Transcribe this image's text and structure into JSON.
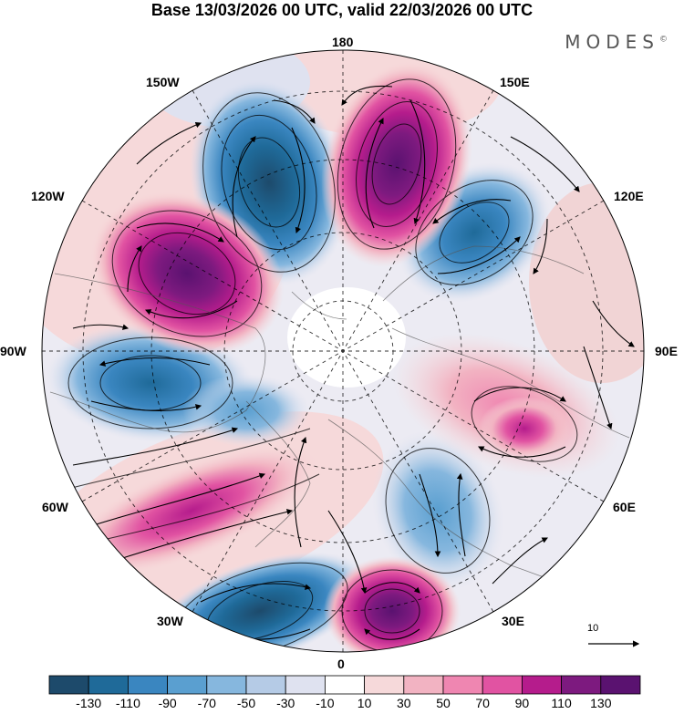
{
  "title": "Base 13/03/2026 00 UTC, valid 22/03/2026 00 UTC",
  "brand": "MODES",
  "brand_mark": "©",
  "longitude_labels": {
    "top": "180",
    "bottom": "0",
    "left": "90W",
    "right": "90E",
    "upper_left": "150W",
    "upper_right": "150E",
    "mid_left_upper": "120W",
    "mid_right_upper": "120E",
    "mid_left_lower": "60W",
    "mid_right_lower": "60E",
    "lower_left": "30W",
    "lower_right": "30E"
  },
  "vector_reference": "10",
  "colorbar": {
    "labels": [
      "-130",
      "-110",
      "-90",
      "-70",
      "-50",
      "-30",
      "-10",
      "10",
      "30",
      "50",
      "70",
      "90",
      "110",
      "130"
    ],
    "colors": [
      "#1d4a6b",
      "#1f6a99",
      "#3a86c0",
      "#5a9fd0",
      "#86b7de",
      "#b5cbe6",
      "#dfe2f0",
      "#ffffff",
      "#f6d9da",
      "#f2b3c2",
      "#ef86b1",
      "#e153a2",
      "#b51c8c",
      "#7d1a7f",
      "#5a1270"
    ]
  }
}
